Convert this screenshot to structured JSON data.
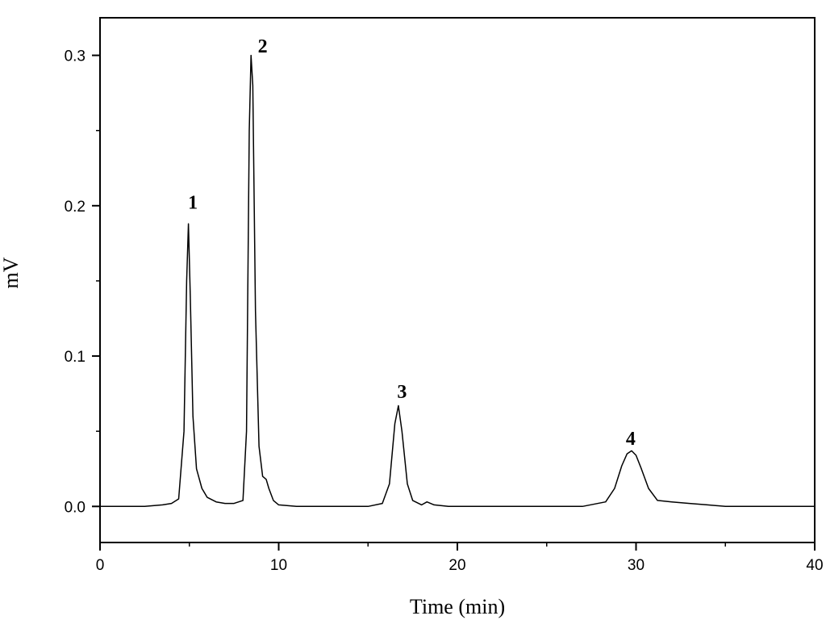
{
  "chart_data": {
    "type": "line",
    "xlabel": "Time (min)",
    "ylabel": "mV",
    "xlim": [
      0,
      40
    ],
    "ylim": [
      -0.024,
      0.325
    ],
    "x_ticks": [
      0,
      10,
      20,
      30,
      40
    ],
    "x_tick_labels": [
      "0",
      "10",
      "20",
      "30",
      "40"
    ],
    "y_ticks": [
      0.0,
      0.1,
      0.2,
      0.3
    ],
    "y_tick_labels": [
      "0.0",
      "0.1",
      "0.2",
      "0.3"
    ],
    "grid": false,
    "series": [
      {
        "x": [
          0,
          2.5,
          3.5,
          4.0,
          4.4,
          4.7,
          4.85,
          4.95,
          5.05,
          5.2,
          5.4,
          5.7,
          6.0,
          6.5,
          7.0,
          7.5,
          8.0,
          8.2,
          8.35,
          8.45,
          8.55,
          8.7,
          8.9,
          9.1,
          9.3,
          9.45,
          9.7,
          10.0,
          11.0,
          13.0,
          15.0,
          15.8,
          16.2,
          16.5,
          16.7,
          16.9,
          17.2,
          17.5,
          18.0,
          18.3,
          18.7,
          19.5,
          22.0,
          25.0,
          27.0,
          28.3,
          28.8,
          29.2,
          29.5,
          29.75,
          30.0,
          30.3,
          30.7,
          31.2,
          32.0,
          33.0,
          34.0,
          35.0,
          40.0
        ],
        "y": [
          0.0,
          0.0,
          0.001,
          0.002,
          0.005,
          0.05,
          0.15,
          0.188,
          0.14,
          0.06,
          0.025,
          0.012,
          0.006,
          0.003,
          0.002,
          0.002,
          0.004,
          0.05,
          0.25,
          0.3,
          0.28,
          0.13,
          0.04,
          0.02,
          0.018,
          0.012,
          0.004,
          0.001,
          0.0,
          0.0,
          0.0,
          0.002,
          0.015,
          0.055,
          0.067,
          0.05,
          0.015,
          0.004,
          0.001,
          0.003,
          0.001,
          0.0,
          0.0,
          0.0,
          0.0,
          0.003,
          0.012,
          0.027,
          0.035,
          0.037,
          0.034,
          0.025,
          0.012,
          0.004,
          0.003,
          0.002,
          0.001,
          0.0,
          0.0
        ]
      }
    ],
    "annotations": [
      {
        "text": "1",
        "x": 5.2,
        "y": 0.198
      },
      {
        "text": "2",
        "x": 9.1,
        "y": 0.302
      },
      {
        "text": "3",
        "x": 16.9,
        "y": 0.072
      },
      {
        "text": "4",
        "x": 29.7,
        "y": 0.041
      }
    ]
  }
}
